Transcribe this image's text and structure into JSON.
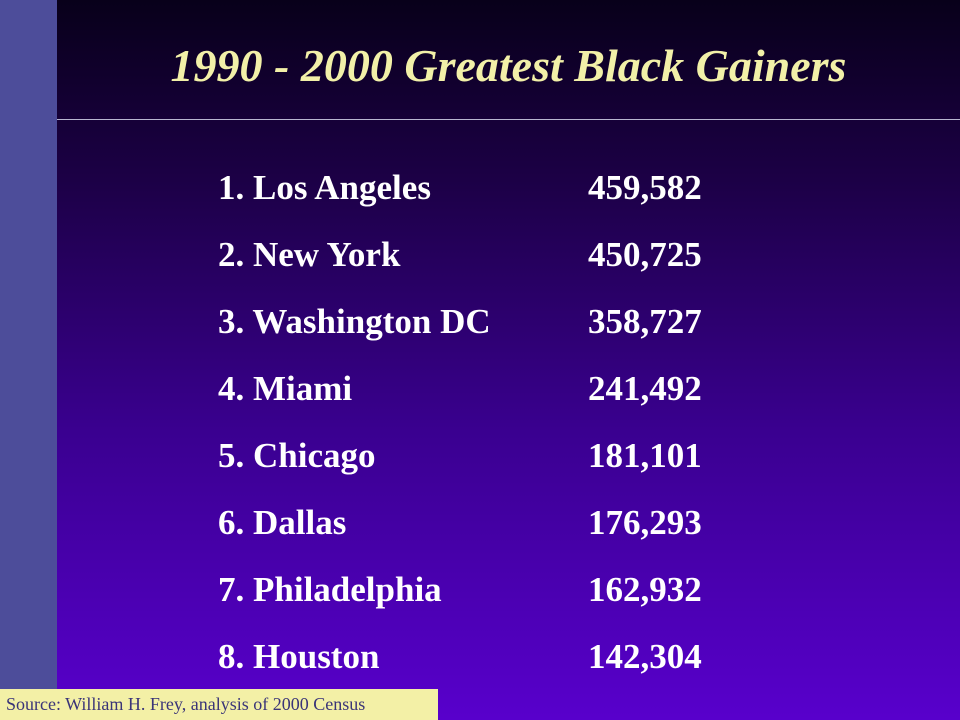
{
  "slide": {
    "title": "1990 - 2000 Greatest Black Gainers",
    "rankings": [
      {
        "city": "1. Los Angeles",
        "value": "459,582"
      },
      {
        "city": "2. New York",
        "value": "450,725"
      },
      {
        "city": "3. Washington DC",
        "value": "358,727"
      },
      {
        "city": "4. Miami",
        "value": "241,492"
      },
      {
        "city": "5. Chicago",
        "value": "181,101"
      },
      {
        "city": "6. Dallas",
        "value": "176,293"
      },
      {
        "city": "7. Philadelphia",
        "value": "162,932"
      },
      {
        "city": "8. Houston",
        "value": "142,304"
      }
    ],
    "source": "Source: William H. Frey, analysis of 2000 Census"
  },
  "colors": {
    "title": "#f2f0a8",
    "side_bar": "#4d4d9a",
    "source_bg": "#f3f0a6",
    "source_text": "#3a3478",
    "list_text": "#ffffff"
  }
}
